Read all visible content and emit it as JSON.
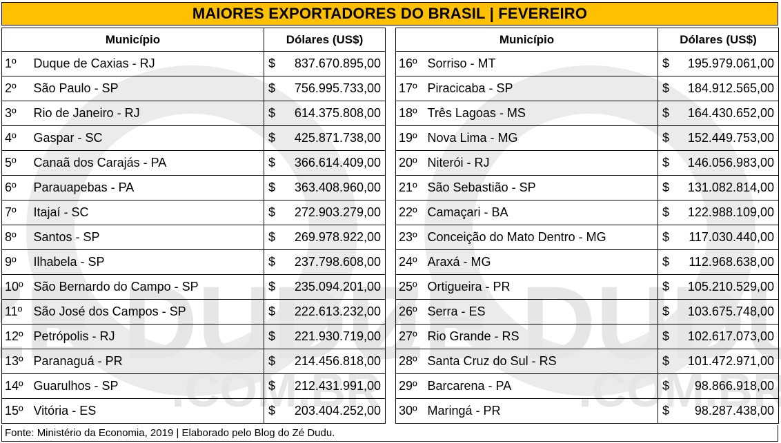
{
  "title": "MAIORES EXPORTADORES DO BRASIL | FEVEREIRO",
  "headers": {
    "municipio": "Município",
    "dolares": "Dólares (US$)"
  },
  "currency_symbol": "$",
  "left_rows": [
    {
      "rank": "1º",
      "name": "Duque de Caxias - RJ",
      "value": "837.670.895,00"
    },
    {
      "rank": "2º",
      "name": "São Paulo - SP",
      "value": "756.995.733,00"
    },
    {
      "rank": "3º",
      "name": "Rio de Janeiro - RJ",
      "value": "614.375.808,00"
    },
    {
      "rank": "4º",
      "name": "Gaspar - SC",
      "value": "425.871.738,00"
    },
    {
      "rank": "5º",
      "name": "Canaã dos Carajás - PA",
      "value": "366.614.409,00"
    },
    {
      "rank": "6º",
      "name": "Parauapebas - PA",
      "value": "363.408.960,00"
    },
    {
      "rank": "7º",
      "name": "Itajaí - SC",
      "value": "272.903.279,00"
    },
    {
      "rank": "8º",
      "name": "Santos - SP",
      "value": "269.978.922,00"
    },
    {
      "rank": "9º",
      "name": "Ilhabela - SP",
      "value": "237.798.608,00"
    },
    {
      "rank": "10º",
      "name": "São Bernardo do Campo - SP",
      "value": "235.094.201,00"
    },
    {
      "rank": "11º",
      "name": "São José dos Campos - SP",
      "value": "222.613.232,00"
    },
    {
      "rank": "12º",
      "name": "Petrópolis - RJ",
      "value": "221.930.719,00"
    },
    {
      "rank": "13º",
      "name": "Paranaguá - PR",
      "value": "214.456.818,00"
    },
    {
      "rank": "14º",
      "name": "Guarulhos - SP",
      "value": "212.431.991,00"
    },
    {
      "rank": "15º",
      "name": "Vitória - ES",
      "value": "203.404.252,00"
    }
  ],
  "right_rows": [
    {
      "rank": "16º",
      "name": "Sorriso - MT",
      "value": "195.979.061,00"
    },
    {
      "rank": "17º",
      "name": "Piracicaba - SP",
      "value": "184.912.565,00"
    },
    {
      "rank": "18º",
      "name": "Três Lagoas - MS",
      "value": "164.430.652,00"
    },
    {
      "rank": "19º",
      "name": "Nova Lima - MG",
      "value": "152.449.753,00"
    },
    {
      "rank": "20º",
      "name": "Niterói - RJ",
      "value": "146.056.983,00"
    },
    {
      "rank": "21º",
      "name": "São Sebastião - SP",
      "value": "131.082.814,00"
    },
    {
      "rank": "22º",
      "name": "Camaçari - BA",
      "value": "122.988.109,00"
    },
    {
      "rank": "23º",
      "name": "Conceição do Mato Dentro - MG",
      "value": "117.030.440,00"
    },
    {
      "rank": "24º",
      "name": "Araxá - MG",
      "value": "112.968.638,00"
    },
    {
      "rank": "25º",
      "name": "Ortigueira - PR",
      "value": "105.210.529,00"
    },
    {
      "rank": "26º",
      "name": "Serra - ES",
      "value": "103.675.748,00"
    },
    {
      "rank": "27º",
      "name": "Rio Grande - RS",
      "value": "102.617.073,00"
    },
    {
      "rank": "28º",
      "name": "Santa Cruz do Sul - RS",
      "value": "101.472.971,00"
    },
    {
      "rank": "29º",
      "name": "Barcarena - PA",
      "value": "98.866.918,00"
    },
    {
      "rank": "30º",
      "name": "Maringá - PR",
      "value": "98.287.438,00"
    }
  ],
  "footer": "Fonte: Ministério da Economia, 2019 | Elaborado pelo Blog do Zé Dudu.",
  "watermark": {
    "brand": "ZE DUDU",
    "domain": ".COM.BR"
  },
  "colors": {
    "title_bg": "#ffc000",
    "watermark": "#e6e6e6"
  }
}
